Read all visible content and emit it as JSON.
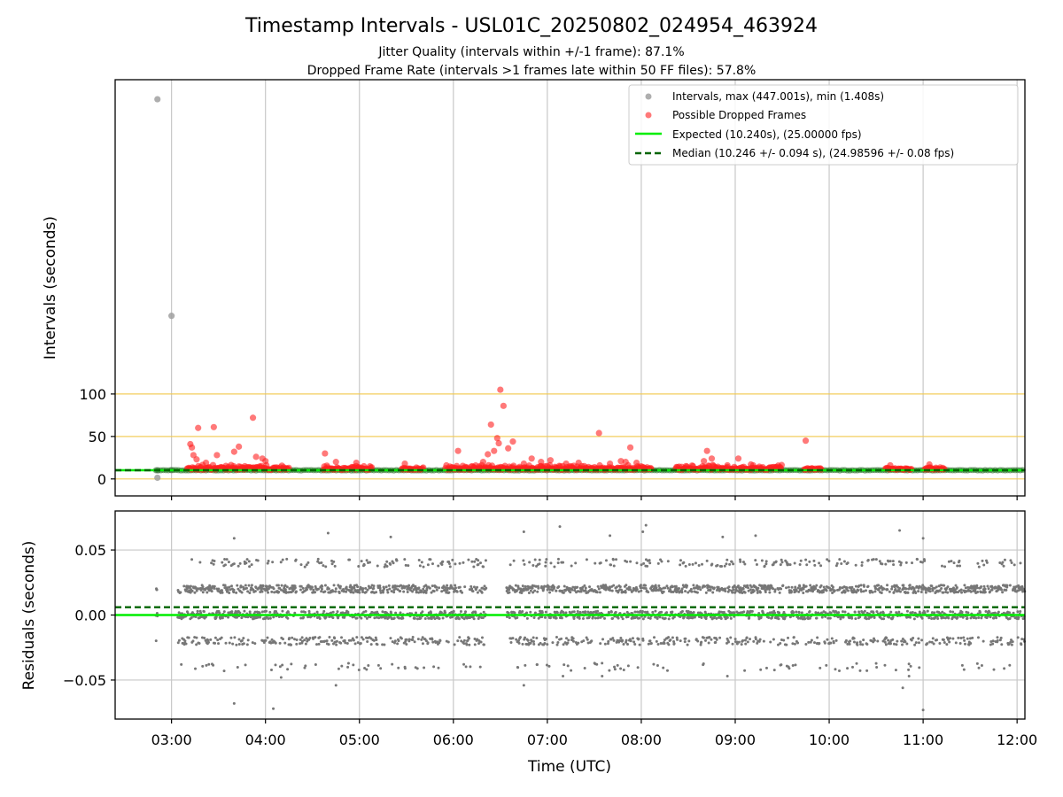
{
  "figure": {
    "title": "Timestamp Intervals - USL01C_20250802_024954_463924",
    "subtitle_1": "Jitter Quality (intervals within +/-1 frame): 87.1%",
    "subtitle_2": "Dropped Frame Rate (intervals >1 frames late within 50 FF files): 57.8%",
    "xlabel": "Time (UTC)",
    "colors": {
      "intervals": "#a0a0a0",
      "dropped": "#ff1f1f",
      "expected": "#00ee00",
      "median": "#006400",
      "reference_lines": "#f2c94c",
      "residuals": "#777777",
      "grid": "#c8c8c8"
    }
  },
  "chart_data": [
    {
      "type": "scatter",
      "panel": "intervals",
      "ylabel": "Intervals (seconds)",
      "ylim": [
        -20,
        470
      ],
      "yticks": [
        0,
        50,
        100
      ],
      "xlim": [
        "02:24",
        "12:05"
      ],
      "xticks": [
        "03:00",
        "04:00",
        "05:00",
        "06:00",
        "07:00",
        "08:00",
        "09:00",
        "10:00",
        "11:00",
        "12:00"
      ],
      "grid": "x",
      "reference_lines": [
        0,
        50,
        100
      ],
      "expected": 10.24,
      "median": 10.246,
      "legend_position": "top-right",
      "legend": [
        "Intervals, max (447.001s), min (1.408s)",
        "Possible Dropped Frames",
        "Expected (10.240s), (25.00000 fps)",
        "Median (10.246 +/- 0.094 s), (24.98596 +/- 0.08 fps)"
      ],
      "series": [
        {
          "name": "Intervals, max (447.001s), min (1.408s)",
          "points": [
            [
              "02:51",
              447.0
            ],
            [
              "02:51",
              1.4
            ],
            [
              "02:51",
              10.2
            ],
            [
              "03:00",
              192.0
            ],
            [
              "03:00",
              10.3
            ]
          ]
        },
        {
          "name": "Possible Dropped Frames",
          "clusters": [
            {
              "start": "03:10",
              "end": "04:15",
              "base": [
                11,
                17
              ]
            },
            {
              "start": "04:37",
              "end": "05:08",
              "base": [
                11,
                16
              ]
            },
            {
              "start": "05:27",
              "end": "05:41",
              "base": [
                11,
                15
              ]
            },
            {
              "start": "05:55",
              "end": "08:07",
              "base": [
                11,
                17
              ]
            },
            {
              "start": "08:22",
              "end": "09:30",
              "base": [
                11,
                17
              ]
            },
            {
              "start": "09:44",
              "end": "09:55",
              "base": [
                11,
                13
              ]
            },
            {
              "start": "10:36",
              "end": "10:53",
              "base": [
                11,
                14
              ]
            },
            {
              "start": "11:01",
              "end": "11:14",
              "base": [
                11,
                14
              ]
            }
          ],
          "outliers": [
            [
              "03:12",
              41
            ],
            [
              "03:13",
              37
            ],
            [
              "03:14",
              28
            ],
            [
              "03:16",
              23
            ],
            [
              "03:17",
              60
            ],
            [
              "03:22",
              19
            ],
            [
              "03:27",
              61
            ],
            [
              "03:29",
              28
            ],
            [
              "03:40",
              32
            ],
            [
              "03:43",
              38
            ],
            [
              "03:52",
              72
            ],
            [
              "03:54",
              26
            ],
            [
              "03:58",
              24
            ],
            [
              "04:00",
              21
            ],
            [
              "04:38",
              30
            ],
            [
              "04:45",
              20
            ],
            [
              "04:58",
              19
            ],
            [
              "05:29",
              18
            ],
            [
              "06:03",
              33
            ],
            [
              "06:13",
              14
            ],
            [
              "06:19",
              20
            ],
            [
              "06:22",
              29
            ],
            [
              "06:24",
              64
            ],
            [
              "06:26",
              33
            ],
            [
              "06:28",
              48
            ],
            [
              "06:29",
              42
            ],
            [
              "06:30",
              105
            ],
            [
              "06:32",
              86
            ],
            [
              "06:35",
              36
            ],
            [
              "06:38",
              44
            ],
            [
              "06:45",
              18
            ],
            [
              "06:50",
              24
            ],
            [
              "06:56",
              20
            ],
            [
              "07:02",
              22
            ],
            [
              "07:12",
              18
            ],
            [
              "07:20",
              19
            ],
            [
              "07:33",
              54
            ],
            [
              "07:40",
              18
            ],
            [
              "07:47",
              21
            ],
            [
              "07:50",
              20
            ],
            [
              "07:53",
              37
            ],
            [
              "07:57",
              19
            ],
            [
              "08:33",
              15
            ],
            [
              "08:40",
              21
            ],
            [
              "08:42",
              33
            ],
            [
              "08:45",
              24
            ],
            [
              "08:55",
              16
            ],
            [
              "09:02",
              24
            ],
            [
              "09:10",
              17
            ],
            [
              "09:45",
              45
            ],
            [
              "10:39",
              16
            ],
            [
              "11:04",
              17
            ]
          ]
        },
        {
          "name": "Expected (10.240s), (25.00000 fps)",
          "y": 10.24
        },
        {
          "name": "Median (10.246 +/- 0.094 s), (24.98596 +/- 0.08 fps)",
          "y": 10.246
        }
      ]
    },
    {
      "type": "scatter",
      "panel": "residuals",
      "ylabel": "Residuals (seconds)",
      "ylim": [
        -0.08,
        0.08
      ],
      "yticks": [
        0.05,
        0.0,
        -0.05
      ],
      "ytick_labels": [
        "0.05",
        "0.00",
        "−0.05"
      ],
      "xlim": [
        "02:24",
        "12:05"
      ],
      "xticks": [
        "03:00",
        "04:00",
        "05:00",
        "06:00",
        "07:00",
        "08:00",
        "09:00",
        "10:00",
        "11:00",
        "12:00"
      ],
      "grid": "both",
      "expected": 0.0,
      "median": 0.006,
      "series": [
        {
          "name": "Residuals",
          "bands": [
            0.02,
            0.0,
            -0.02,
            0.04,
            -0.04
          ],
          "coverage": [
            {
              "start": "02:50",
              "end": "02:51"
            },
            {
              "start": "03:04",
              "end": "04:20"
            },
            {
              "start": "04:22",
              "end": "06:21"
            },
            {
              "start": "06:34",
              "end": "12:05"
            }
          ],
          "outliers": [
            [
              "03:40",
              0.059
            ],
            [
              "03:40",
              -0.068
            ],
            [
              "04:05",
              -0.072
            ],
            [
              "04:10",
              -0.048
            ],
            [
              "04:40",
              0.063
            ],
            [
              "04:45",
              -0.054
            ],
            [
              "05:20",
              0.06
            ],
            [
              "06:45",
              0.064
            ],
            [
              "06:45",
              -0.054
            ],
            [
              "07:08",
              0.068
            ],
            [
              "07:10",
              -0.047
            ],
            [
              "07:35",
              -0.047
            ],
            [
              "07:40",
              0.061
            ],
            [
              "08:03",
              0.069
            ],
            [
              "08:01",
              0.064
            ],
            [
              "08:52",
              0.06
            ],
            [
              "08:55",
              -0.047
            ],
            [
              "09:13",
              0.061
            ],
            [
              "10:45",
              0.065
            ],
            [
              "10:47",
              -0.056
            ],
            [
              "10:51",
              -0.047
            ],
            [
              "11:00",
              0.059
            ],
            [
              "11:00",
              -0.073
            ]
          ]
        },
        {
          "name": "Expected",
          "y": 0.0
        },
        {
          "name": "Median",
          "y": 0.006
        }
      ]
    }
  ]
}
